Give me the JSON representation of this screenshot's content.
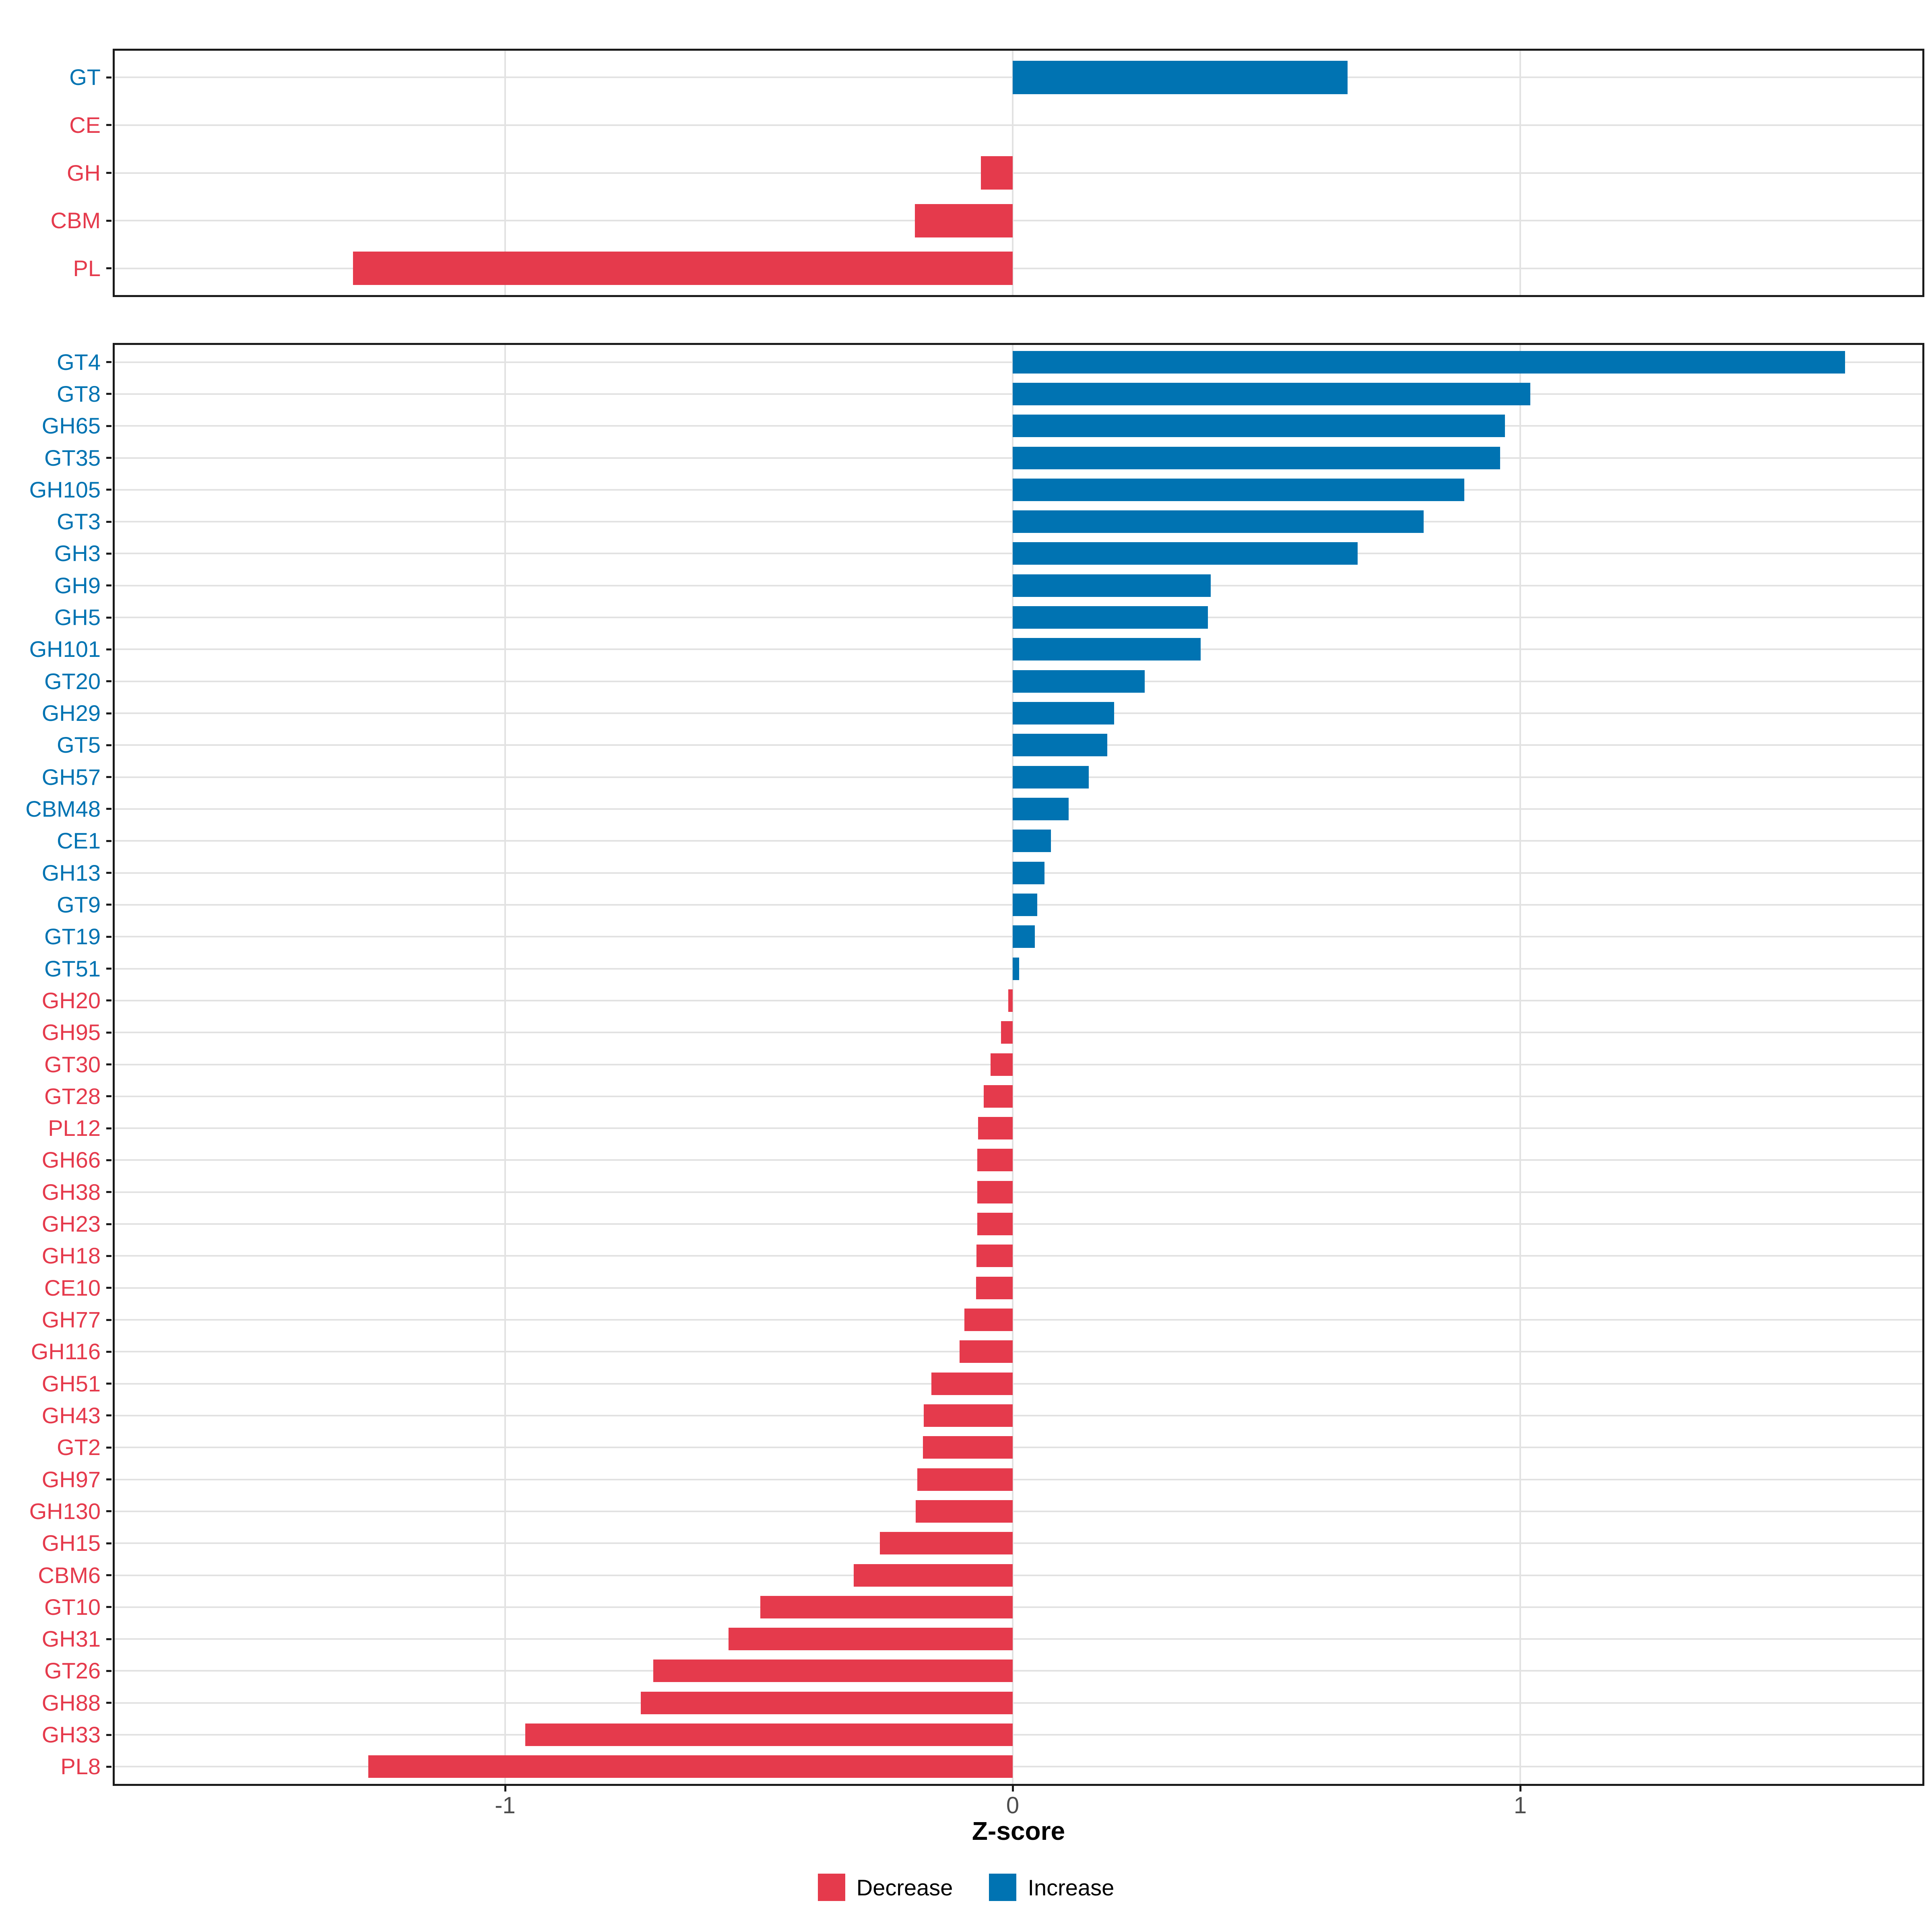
{
  "chart_data": [
    {
      "panel": "summary",
      "type": "bar",
      "orientation": "horizontal",
      "categories": [
        "GT",
        "CE",
        "GH",
        "CBM",
        "PL"
      ],
      "values": [
        0.66,
        0.0,
        -0.063,
        -0.193,
        -1.3
      ],
      "groups": [
        "Increase",
        "Decrease",
        "Decrease",
        "Decrease",
        "Decrease"
      ]
    },
    {
      "panel": "families",
      "type": "bar",
      "orientation": "horizontal",
      "categories": [
        "GT4",
        "GT8",
        "GH65",
        "GT35",
        "GH105",
        "GT3",
        "GH3",
        "GH9",
        "GH5",
        "GH101",
        "GT20",
        "GH29",
        "GT5",
        "GH57",
        "CBM48",
        "CE1",
        "GH13",
        "GT9",
        "GT19",
        "GT51",
        "GH20",
        "GH95",
        "GT30",
        "GT28",
        "PL12",
        "GH66",
        "GH38",
        "GH23",
        "GH18",
        "CE10",
        "GH77",
        "GH116",
        "GH51",
        "GH43",
        "GT2",
        "GH97",
        "GH130",
        "GH15",
        "CBM6",
        "GT10",
        "GH31",
        "GT26",
        "GH88",
        "GH33",
        "PL8"
      ],
      "values": [
        1.64,
        1.02,
        0.97,
        0.96,
        0.89,
        0.81,
        0.68,
        0.39,
        0.385,
        0.37,
        0.26,
        0.2,
        0.186,
        0.15,
        0.11,
        0.075,
        0.063,
        0.048,
        0.044,
        0.013,
        -0.009,
        -0.023,
        -0.044,
        -0.057,
        -0.068,
        -0.07,
        -0.07,
        -0.07,
        -0.071,
        -0.072,
        -0.095,
        -0.105,
        -0.16,
        -0.175,
        -0.177,
        -0.188,
        -0.191,
        -0.262,
        -0.313,
        -0.497,
        -0.56,
        -0.708,
        -0.733,
        -0.96,
        -1.27
      ],
      "groups": [
        "Increase",
        "Increase",
        "Increase",
        "Increase",
        "Increase",
        "Increase",
        "Increase",
        "Increase",
        "Increase",
        "Increase",
        "Increase",
        "Increase",
        "Increase",
        "Increase",
        "Increase",
        "Increase",
        "Increase",
        "Increase",
        "Increase",
        "Increase",
        "Decrease",
        "Decrease",
        "Decrease",
        "Decrease",
        "Decrease",
        "Decrease",
        "Decrease",
        "Decrease",
        "Decrease",
        "Decrease",
        "Decrease",
        "Decrease",
        "Decrease",
        "Decrease",
        "Decrease",
        "Decrease",
        "Decrease",
        "Decrease",
        "Decrease",
        "Decrease",
        "Decrease",
        "Decrease",
        "Decrease",
        "Decrease",
        "Decrease"
      ]
    }
  ],
  "axis": {
    "title": "Z-score",
    "ticks": [
      -1,
      0,
      1
    ],
    "tick_labels": [
      "-1",
      "0",
      "1"
    ],
    "xlim": [
      -1.77,
      1.8
    ],
    "grid": "major-only"
  },
  "legend": {
    "position": "bottom",
    "items": [
      {
        "label": "Decrease",
        "color": "#E53A4C"
      },
      {
        "label": "Increase",
        "color": "#0073B2"
      }
    ]
  },
  "colors": {
    "increase": "#0073B2",
    "decrease": "#E53A4C",
    "grid": "#E2E2E2",
    "panel_border": "#1A1A1A",
    "axis_text": "#4D4D4D",
    "axis_title": "#000000",
    "background": "#FFFFFF"
  }
}
